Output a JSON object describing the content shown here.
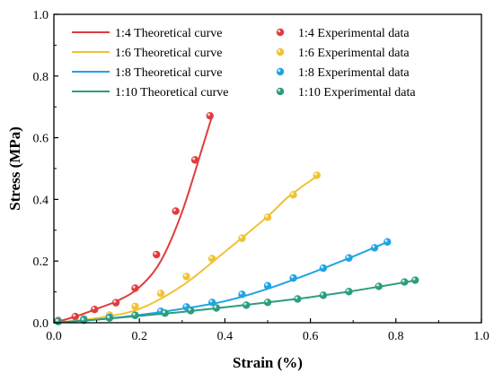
{
  "chart_data": {
    "type": "scatter",
    "xlabel": "Strain (%)",
    "ylabel": "Stress (MPa)",
    "xlim": [
      0.0,
      1.0
    ],
    "ylim": [
      0.0,
      1.0
    ],
    "xticks": [
      "0.0",
      "0.2",
      "0.4",
      "0.6",
      "0.8",
      "1.0"
    ],
    "yticks": [
      "0.0",
      "0.2",
      "0.4",
      "0.6",
      "0.8",
      "1.0"
    ],
    "grid": false,
    "legend_placement": "top-left",
    "series": [
      {
        "ratio": "1:4",
        "curve_name": "1:4 Theoretical curve",
        "data_name": "1:4 Experimental data",
        "color": "#e03c3c",
        "curve": {
          "x": [
            0.0,
            0.05,
            0.1,
            0.15,
            0.2,
            0.25,
            0.3,
            0.35,
            0.37
          ],
          "y": [
            0.0,
            0.02,
            0.045,
            0.072,
            0.115,
            0.2,
            0.36,
            0.58,
            0.67
          ]
        },
        "points": {
          "x": [
            0.01,
            0.05,
            0.095,
            0.145,
            0.19,
            0.24,
            0.285,
            0.33,
            0.365
          ],
          "y": [
            0.007,
            0.02,
            0.043,
            0.065,
            0.112,
            0.221,
            0.362,
            0.528,
            0.671
          ]
        }
      },
      {
        "ratio": "1:6",
        "curve_name": "1:6 Theoretical curve",
        "data_name": "1:6 Experimental data",
        "color": "#f1c232",
        "curve": {
          "x": [
            0.0,
            0.1,
            0.2,
            0.3,
            0.4,
            0.5,
            0.55,
            0.62
          ],
          "y": [
            0.0,
            0.015,
            0.045,
            0.12,
            0.23,
            0.345,
            0.41,
            0.48
          ]
        },
        "points": {
          "x": [
            0.01,
            0.07,
            0.13,
            0.19,
            0.25,
            0.31,
            0.37,
            0.44,
            0.5,
            0.56,
            0.615
          ],
          "y": [
            0.005,
            0.013,
            0.025,
            0.053,
            0.095,
            0.15,
            0.208,
            0.274,
            0.342,
            0.415,
            0.478
          ]
        }
      },
      {
        "ratio": "1:8",
        "curve_name": "1:8 Theoretical curve",
        "data_name": "1:8 Experimental data",
        "color": "#1fa4e4",
        "curve": {
          "x": [
            0.0,
            0.1,
            0.2,
            0.3,
            0.4,
            0.5,
            0.6,
            0.7,
            0.78
          ],
          "y": [
            0.0,
            0.01,
            0.025,
            0.045,
            0.07,
            0.11,
            0.16,
            0.215,
            0.262
          ]
        },
        "points": {
          "x": [
            0.01,
            0.07,
            0.13,
            0.19,
            0.25,
            0.31,
            0.37,
            0.44,
            0.5,
            0.56,
            0.63,
            0.69,
            0.75,
            0.78
          ],
          "y": [
            0.004,
            0.011,
            0.018,
            0.024,
            0.037,
            0.051,
            0.066,
            0.092,
            0.12,
            0.145,
            0.177,
            0.21,
            0.243,
            0.262
          ]
        }
      },
      {
        "ratio": "1:10",
        "curve_name": "1:10 Theoretical curve",
        "data_name": "1:10 Experimental data",
        "color": "#2a9d80",
        "curve": {
          "x": [
            0.0,
            0.1,
            0.2,
            0.3,
            0.4,
            0.5,
            0.6,
            0.7,
            0.85
          ],
          "y": [
            0.0,
            0.01,
            0.022,
            0.035,
            0.05,
            0.066,
            0.083,
            0.103,
            0.138
          ]
        },
        "points": {
          "x": [
            0.01,
            0.07,
            0.13,
            0.19,
            0.26,
            0.32,
            0.38,
            0.45,
            0.5,
            0.57,
            0.63,
            0.69,
            0.76,
            0.82,
            0.845
          ],
          "y": [
            0.004,
            0.008,
            0.015,
            0.024,
            0.031,
            0.039,
            0.048,
            0.057,
            0.066,
            0.077,
            0.089,
            0.101,
            0.118,
            0.132,
            0.138
          ]
        }
      }
    ]
  }
}
